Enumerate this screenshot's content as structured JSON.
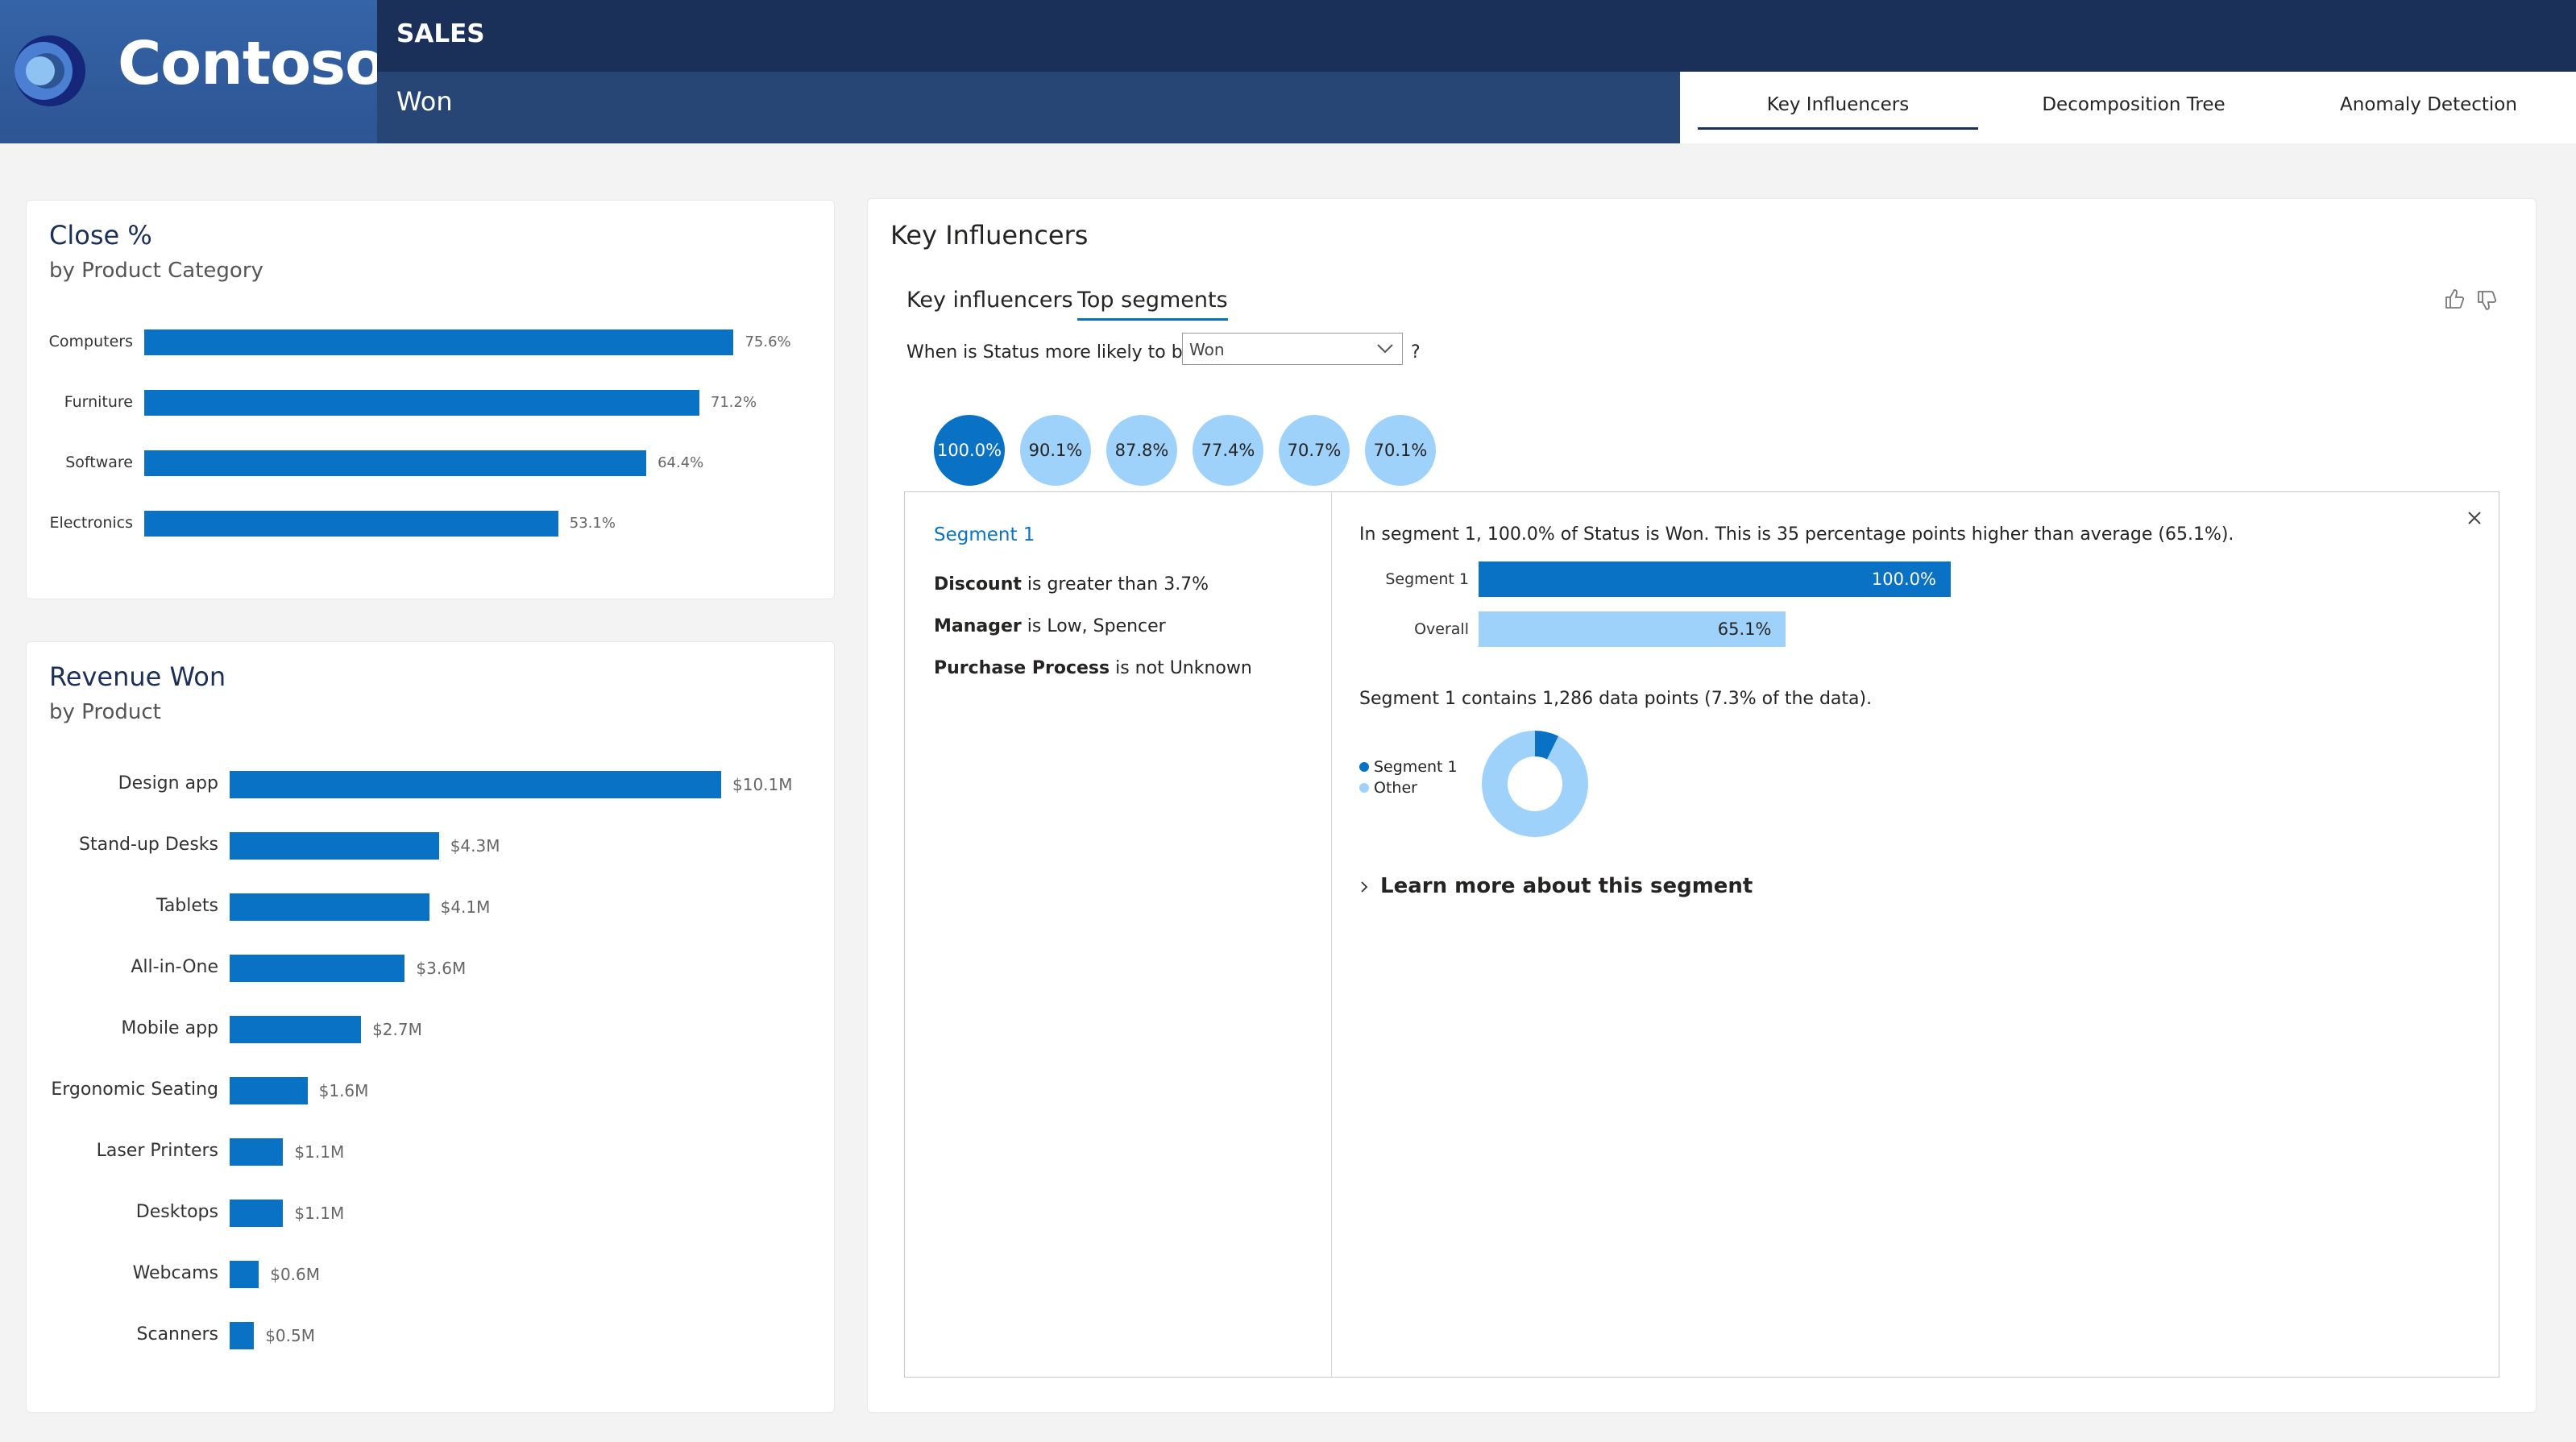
{
  "header": {
    "brand": "Contoso",
    "section": "SALES",
    "status": "Won",
    "nav": [
      {
        "label": "Key Influencers",
        "active": true
      },
      {
        "label": "Decomposition Tree",
        "active": false
      },
      {
        "label": "Anomaly Detection",
        "active": false
      }
    ]
  },
  "close_card": {
    "title": "Close %",
    "subtitle": "by Product Category",
    "chart_data": {
      "type": "bar",
      "orientation": "horizontal",
      "categories": [
        "Computers",
        "Furniture",
        "Software",
        "Electronics"
      ],
      "values": [
        75.6,
        71.2,
        64.4,
        53.1
      ],
      "value_labels": [
        "75.6%",
        "71.2%",
        "64.4%",
        "53.1%"
      ],
      "xlim": [
        0,
        77
      ],
      "color": "#0a72c5"
    }
  },
  "revenue_card": {
    "title": "Revenue Won",
    "subtitle": "by Product",
    "chart_data": {
      "type": "bar",
      "orientation": "horizontal",
      "categories": [
        "Design app",
        "Stand-up Desks",
        "Tablets",
        "All-in-One",
        "Mobile app",
        "Ergonomic Seating",
        "Laser Printers",
        "Desktops",
        "Webcams",
        "Scanners"
      ],
      "values": [
        10.1,
        4.3,
        4.1,
        3.6,
        2.7,
        1.6,
        1.1,
        1.1,
        0.6,
        0.5
      ],
      "value_labels": [
        "$10.1M",
        "$4.3M",
        "$4.1M",
        "$3.6M",
        "$2.7M",
        "$1.6M",
        "$1.1M",
        "$1.1M",
        "$0.6M",
        "$0.5M"
      ],
      "xlim": [
        0,
        10.1
      ],
      "color": "#0a72c5"
    }
  },
  "key_influencers": {
    "title": "Key Influencers",
    "tabs": [
      "Key influencers",
      "Top segments"
    ],
    "active_tab": "Top segments",
    "question_prefix": "When is Status more likely to be",
    "question_value": "Won",
    "question_suffix": "?",
    "segments": [
      "100.0%",
      "90.1%",
      "87.8%",
      "77.4%",
      "70.7%",
      "70.1%"
    ],
    "selected_segment": 0,
    "detail": {
      "segment_name": "Segment 1",
      "conditions": [
        {
          "field": "Discount",
          "rest": " is greater than 3.7%"
        },
        {
          "field": "Manager",
          "rest": " is Low, Spencer"
        },
        {
          "field": "Purchase Process",
          "rest": " is not Unknown"
        }
      ],
      "summary": "In segment 1, 100.0% of Status is Won. This is 35 percentage points higher than average (65.1%).",
      "compare_chart": {
        "type": "bar",
        "orientation": "horizontal",
        "categories": [
          "Segment 1",
          "Overall"
        ],
        "values": [
          100.0,
          65.1
        ],
        "value_labels": [
          "100.0%",
          "65.1%"
        ],
        "xlim": [
          0,
          100
        ],
        "colors": [
          "#0a72c5",
          "#9fd2fa"
        ]
      },
      "datapoints_text": "Segment 1 contains 1,286 data points (7.3% of the data).",
      "donut_chart": {
        "type": "pie",
        "labels": [
          "Segment 1",
          "Other"
        ],
        "values": [
          7.3,
          92.7
        ],
        "colors": [
          "#0a72c5",
          "#9fd2fa"
        ]
      },
      "learn_more": "Learn more about this segment"
    }
  }
}
